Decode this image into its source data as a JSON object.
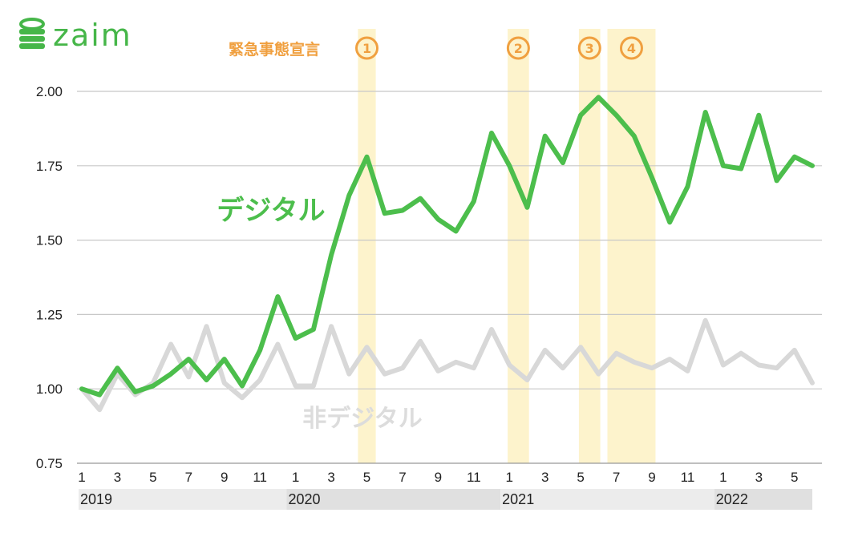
{
  "brand": {
    "name": "zaim",
    "color": "#46b649"
  },
  "emergency": {
    "label": "緊急事態宣言",
    "color": "#f0a040",
    "band_color": "#fdf3cc",
    "periods": [
      {
        "id": "1",
        "start": 15.5,
        "end": 16.5
      },
      {
        "id": "2",
        "start": 23.9,
        "end": 25.1
      },
      {
        "id": "3",
        "start": 27.9,
        "end": 29.1
      },
      {
        "id": "4",
        "start": 29.5,
        "end": 32.2
      }
    ]
  },
  "chart_data": {
    "type": "line",
    "ylim": [
      0.75,
      2.0
    ],
    "yticks": [
      "0.75",
      "1.00",
      "1.25",
      "1.50",
      "1.75",
      "2.00"
    ],
    "grid": true,
    "x": [
      "2019-01",
      "2019-02",
      "2019-03",
      "2019-04",
      "2019-05",
      "2019-06",
      "2019-07",
      "2019-08",
      "2019-09",
      "2019-10",
      "2019-11",
      "2019-12",
      "2020-01",
      "2020-02",
      "2020-03",
      "2020-04",
      "2020-05",
      "2020-06",
      "2020-07",
      "2020-08",
      "2020-09",
      "2020-10",
      "2020-11",
      "2020-12",
      "2021-01",
      "2021-02",
      "2021-03",
      "2021-04",
      "2021-05",
      "2021-06",
      "2021-07",
      "2021-08",
      "2021-09",
      "2021-10",
      "2021-11",
      "2021-12",
      "2022-01",
      "2022-02",
      "2022-03",
      "2022-04",
      "2022-05",
      "2022-06"
    ],
    "month_tick_labels": [
      "1",
      "3",
      "5",
      "7",
      "9",
      "11",
      "1",
      "3",
      "5",
      "7",
      "9",
      "11",
      "1",
      "3",
      "5",
      "7",
      "9",
      "11",
      "1",
      "3",
      "5"
    ],
    "year_labels": [
      {
        "label": "2019",
        "start": 0,
        "end": 11
      },
      {
        "label": "2020",
        "start": 12,
        "end": 23
      },
      {
        "label": "2021",
        "start": 24,
        "end": 35
      },
      {
        "label": "2022",
        "start": 36,
        "end": 41
      }
    ],
    "series": [
      {
        "name": "デジタル",
        "color": "#4cbe4c",
        "values": [
          1.0,
          0.98,
          1.07,
          0.99,
          1.01,
          1.05,
          1.1,
          1.03,
          1.1,
          1.01,
          1.13,
          1.31,
          1.17,
          1.2,
          1.45,
          1.65,
          1.78,
          1.59,
          1.6,
          1.64,
          1.57,
          1.53,
          1.63,
          1.86,
          1.75,
          1.61,
          1.85,
          1.76,
          1.92,
          1.98,
          1.92,
          1.85,
          1.71,
          1.56,
          1.68,
          1.93,
          1.75,
          1.74,
          1.92,
          1.7,
          1.78,
          1.75
        ]
      },
      {
        "name": "非デジタル",
        "color": "#d8d8d8",
        "values": [
          1.0,
          0.93,
          1.05,
          0.98,
          1.02,
          1.15,
          1.04,
          1.21,
          1.02,
          0.97,
          1.03,
          1.15,
          1.01,
          1.01,
          1.21,
          1.05,
          1.14,
          1.05,
          1.07,
          1.16,
          1.06,
          1.09,
          1.07,
          1.2,
          1.08,
          1.03,
          1.13,
          1.07,
          1.14,
          1.05,
          1.12,
          1.09,
          1.07,
          1.1,
          1.06,
          1.23,
          1.08,
          1.12,
          1.08,
          1.07,
          1.13,
          1.02
        ]
      }
    ]
  }
}
